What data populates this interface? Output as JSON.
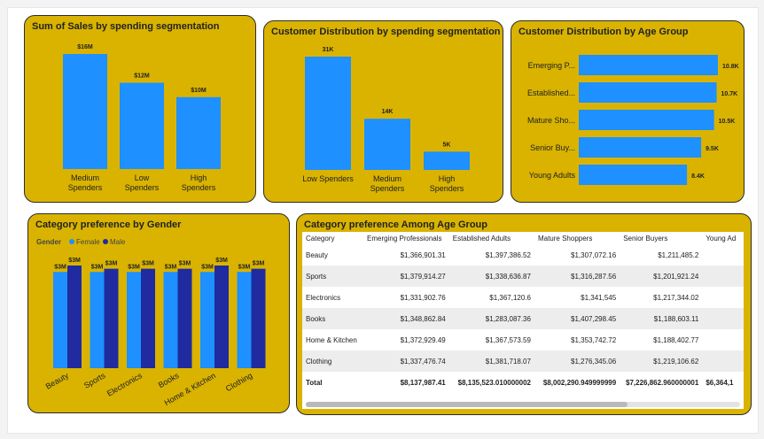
{
  "colors": {
    "card_bg": "#d9b300",
    "bar": "#1e90ff",
    "female": "#1e90ff",
    "male": "#1f2b9e"
  },
  "card1": {
    "title": "Sum of Sales by spending segmentation",
    "chart_data": {
      "type": "bar",
      "categories": [
        "Medium Spenders",
        "Low Spenders",
        "High Spenders"
      ],
      "category_lines": [
        [
          "Medium",
          "Spenders"
        ],
        [
          "Low",
          "Spenders"
        ],
        [
          "High",
          "Spenders"
        ]
      ],
      "values": [
        16,
        12,
        10
      ],
      "data_labels": [
        "$16M",
        "$12M",
        "$10M"
      ],
      "ylim": [
        0,
        16
      ]
    }
  },
  "card2": {
    "title": "Customer Distribution by spending segmentation",
    "chart_data": {
      "type": "bar",
      "categories": [
        "Low Spenders",
        "Medium Spenders",
        "High Spenders"
      ],
      "category_lines": [
        [
          "Low Spenders"
        ],
        [
          "Medium",
          "Spenders"
        ],
        [
          "High",
          "Spenders"
        ]
      ],
      "values": [
        31,
        14,
        5
      ],
      "data_labels": [
        "31K",
        "14K",
        "5K"
      ],
      "ylim": [
        0,
        31
      ]
    }
  },
  "card3": {
    "title": "Customer Distribution by Age Group",
    "chart_data": {
      "type": "bar",
      "orientation": "horizontal",
      "categories": [
        "Emerging P...",
        "Established...",
        "Mature Sho...",
        "Senior Buy...",
        "Young Adults"
      ],
      "values": [
        10.8,
        10.7,
        10.5,
        9.5,
        8.4
      ],
      "data_labels": [
        "10.8K",
        "10.7K",
        "10.5K",
        "9.5K",
        "8.4K"
      ],
      "xlim": [
        0,
        10.8
      ]
    }
  },
  "card4": {
    "title": "Category preference by Gender",
    "legend_title": "Gender",
    "legend": [
      {
        "name": "Female",
        "color": "#1e90ff"
      },
      {
        "name": "Male",
        "color": "#1f2b9e"
      }
    ],
    "chart_data": {
      "type": "bar",
      "categories": [
        "Beauty",
        "Sports",
        "Electronics",
        "Books",
        "Home & Kitchen",
        "Clothing"
      ],
      "series": [
        {
          "name": "Female",
          "values": [
            3,
            3,
            3,
            3,
            3,
            3
          ],
          "labels": [
            "$3M",
            "$3M",
            "$3M",
            "$3M",
            "$3M",
            "$3M"
          ]
        },
        {
          "name": "Male",
          "values": [
            3.2,
            3.1,
            3.1,
            3.1,
            3.2,
            3.1
          ],
          "labels": [
            "$3M",
            "$3M",
            "$3M",
            "$3M",
            "$3M",
            "$3M"
          ]
        }
      ],
      "ylim": [
        0,
        3.2
      ]
    }
  },
  "card5": {
    "title": "Category preference Among Age Group",
    "table": {
      "headers": [
        "Category",
        "Emerging Professionals",
        "Established Adults",
        "Mature Shoppers",
        "Senior Buyers",
        "Young Ad"
      ],
      "rows": [
        [
          "Beauty",
          "$1,366,901.31",
          "$1,397,386.52",
          "$1,307,072.16",
          "$1,211,485.2"
        ],
        [
          "Sports",
          "$1,379,914.27",
          "$1,338,636.87",
          "$1,316,287.56",
          "$1,201,921.24"
        ],
        [
          "Electronics",
          "$1,331,902.76",
          "$1,367,120.6",
          "$1,341,545",
          "$1,217,344.02"
        ],
        [
          "Books",
          "$1,348,862.84",
          "$1,283,087.36",
          "$1,407,298.45",
          "$1,188,603.11"
        ],
        [
          "Home & Kitchen",
          "$1,372,929.49",
          "$1,367,573.59",
          "$1,353,742.72",
          "$1,188,402.77"
        ],
        [
          "Clothing",
          "$1,337,476.74",
          "$1,381,718.07",
          "$1,276,345.06",
          "$1,219,106.62"
        ]
      ],
      "total": [
        "Total",
        "$8,137,987.41",
        "$8,135,523.010000002",
        "$8,002,290.949999999",
        "$7,226,862.960000001",
        "$6,364,1"
      ]
    },
    "scroll_fraction": 0.74
  }
}
